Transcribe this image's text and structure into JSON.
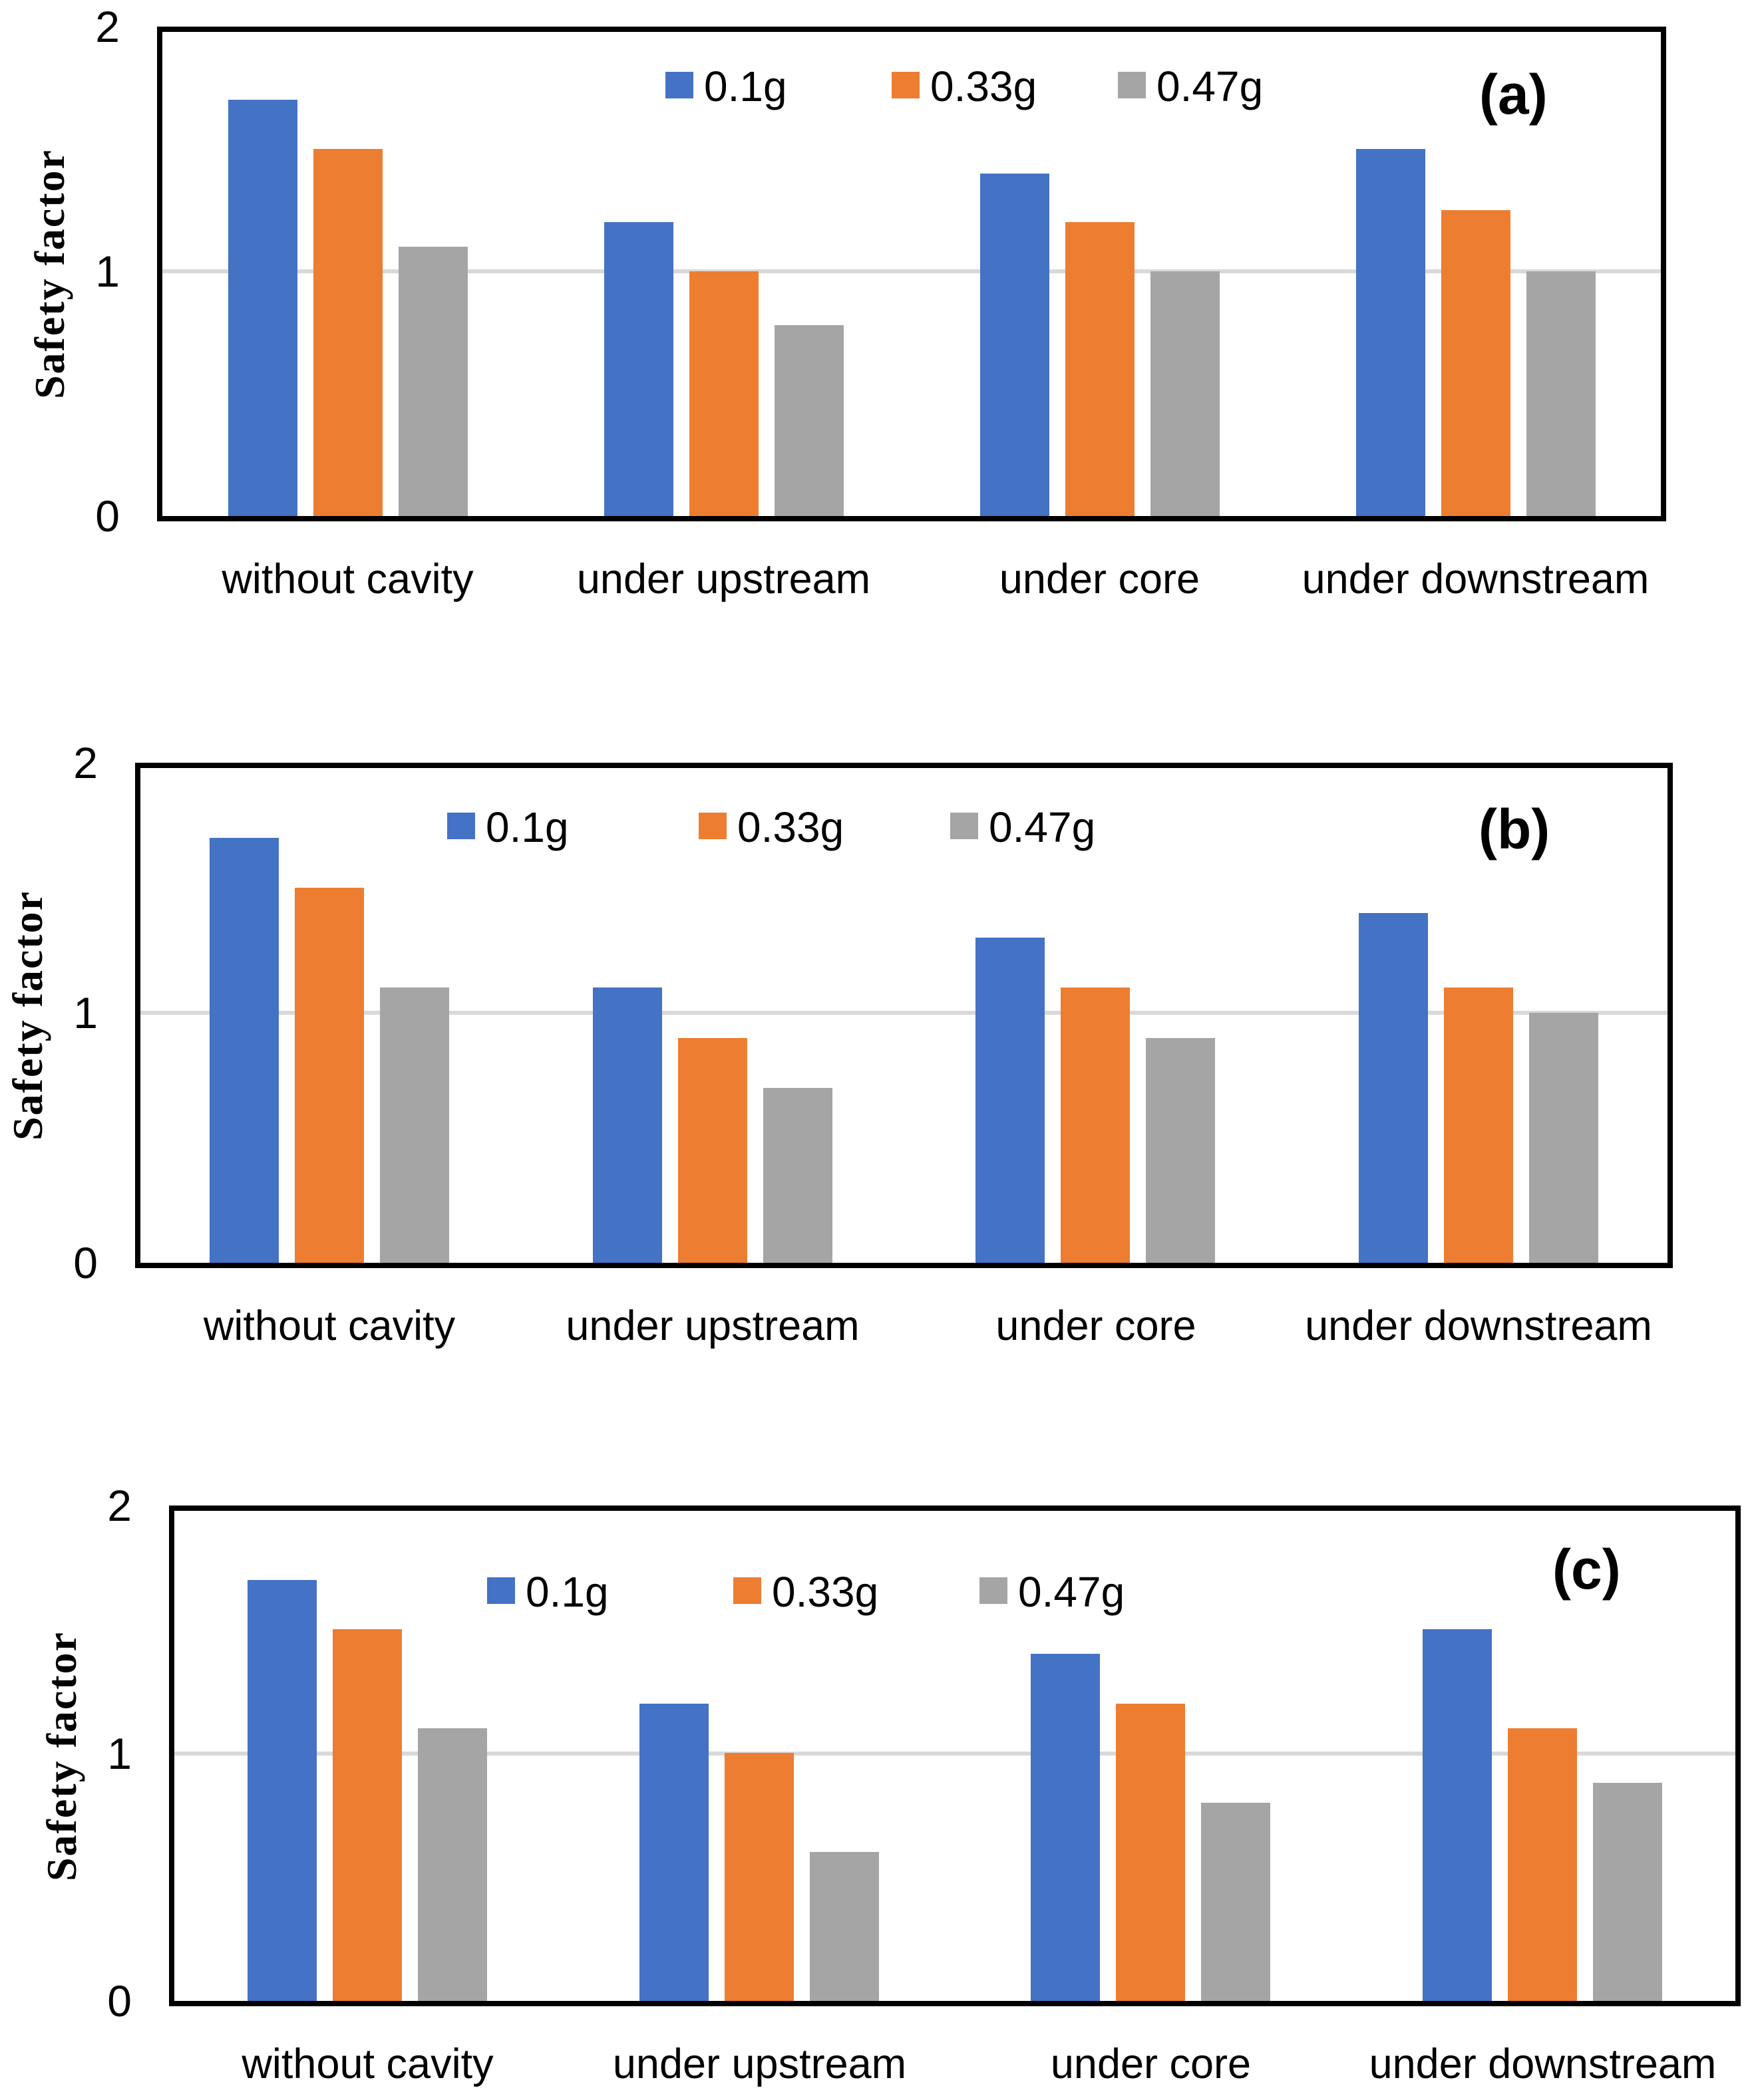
{
  "figure": {
    "background": "#FFFFFF",
    "axis_color": "#000000",
    "gridline_color": "#D9D9D9",
    "series_labels": [
      "0.1g",
      "0.33g",
      "0.47g"
    ],
    "series_colors": [
      "#4472C4",
      "#ED7D31",
      "#A5A5A5"
    ]
  },
  "axis": {
    "ytick_labels": [
      "2",
      "1",
      "0"
    ],
    "ytick_values": [
      2,
      1,
      0
    ]
  },
  "chart_data": [
    {
      "id": "a",
      "type": "bar",
      "panel_label": "(a)",
      "ylabel": "Safety factor",
      "xlabel": "",
      "ylim": [
        0,
        2
      ],
      "yticks": [
        0,
        1,
        2
      ],
      "gridline_y": 1,
      "grid": "single horizontal gridline at y=1",
      "legend_position": "top-center-inside",
      "categories": [
        "without cavity",
        "under upstream",
        "under core",
        "under downstream"
      ],
      "series": [
        {
          "name": "0.1g",
          "values": [
            1.7,
            1.2,
            1.4,
            1.5
          ]
        },
        {
          "name": "0.33g",
          "values": [
            1.5,
            1.0,
            1.2,
            1.25
          ]
        },
        {
          "name": "0.47g",
          "values": [
            1.1,
            0.78,
            1.0,
            1.0
          ]
        }
      ]
    },
    {
      "id": "b",
      "type": "bar",
      "panel_label": "(b)",
      "ylabel": "Safety factor",
      "xlabel": "",
      "ylim": [
        0,
        2
      ],
      "yticks": [
        0,
        1,
        2
      ],
      "gridline_y": 1,
      "grid": "single horizontal gridline at y=1",
      "legend_position": "top-center-inside",
      "categories": [
        "without cavity",
        "under upstream",
        "under core",
        "under downstream"
      ],
      "series": [
        {
          "name": "0.1g",
          "values": [
            1.7,
            1.1,
            1.3,
            1.4
          ]
        },
        {
          "name": "0.33g",
          "values": [
            1.5,
            0.9,
            1.1,
            1.1
          ]
        },
        {
          "name": "0.47g",
          "values": [
            1.1,
            0.7,
            0.9,
            1.0
          ]
        }
      ]
    },
    {
      "id": "c",
      "type": "bar",
      "panel_label": "(c)",
      "ylabel": "Safety factor",
      "xlabel": "",
      "ylim": [
        0,
        2
      ],
      "yticks": [
        0,
        1,
        2
      ],
      "gridline_y": 1,
      "grid": "single horizontal gridline at y=1",
      "legend_position": "top-center-inside",
      "categories": [
        "without cavity",
        "under upstream",
        "under core",
        "under downstream"
      ],
      "series": [
        {
          "name": "0.1g",
          "values": [
            1.7,
            1.2,
            1.4,
            1.5
          ]
        },
        {
          "name": "0.33g",
          "values": [
            1.5,
            1.0,
            1.2,
            1.1
          ]
        },
        {
          "name": "0.47g",
          "values": [
            1.1,
            0.6,
            0.8,
            0.88
          ]
        }
      ]
    }
  ]
}
